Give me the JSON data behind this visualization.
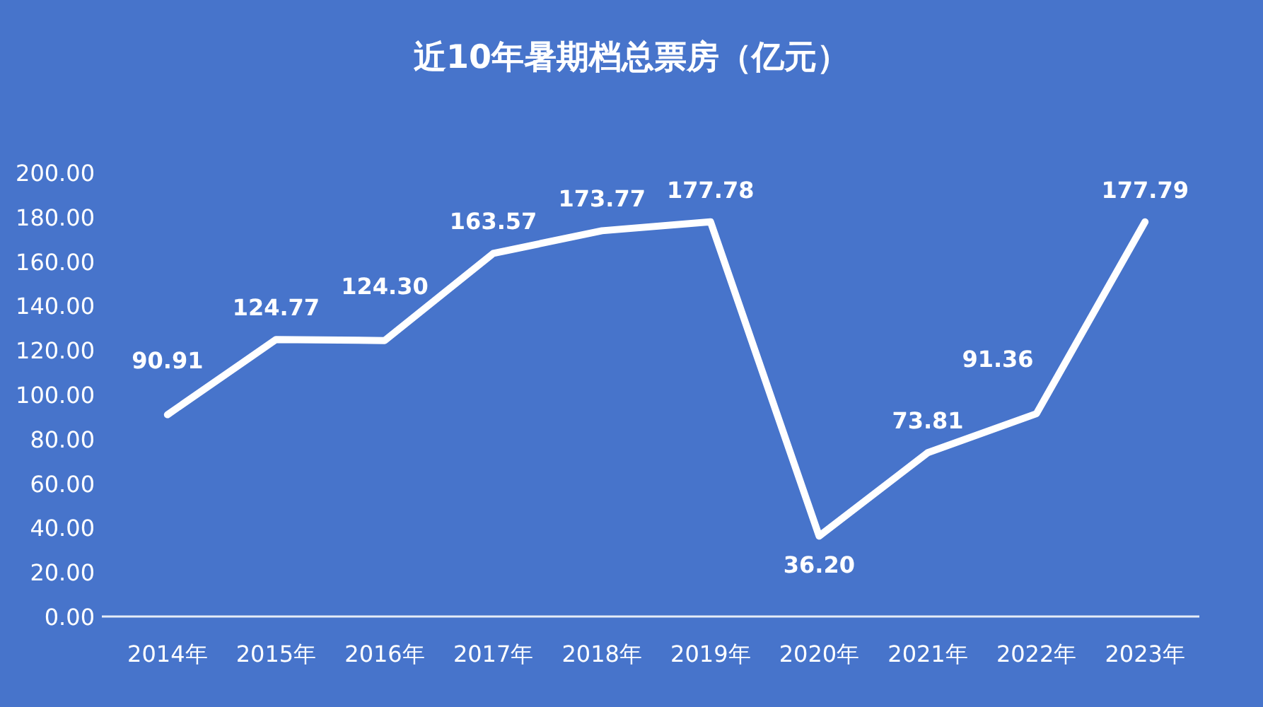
{
  "chart_data": {
    "type": "line",
    "title": "近10年暑期档总票房（亿元）",
    "categories": [
      "2014年",
      "2015年",
      "2016年",
      "2017年",
      "2018年",
      "2019年",
      "2020年",
      "2021年",
      "2022年",
      "2023年"
    ],
    "series": [
      {
        "color": "#ffffff",
        "values": [
          90.91,
          124.77,
          124.3,
          163.57,
          173.77,
          177.78,
          36.2,
          73.81,
          91.36,
          177.79
        ],
        "value_labels": [
          "90.91",
          "124.77",
          "124.30",
          "163.57",
          "173.77",
          "177.78",
          "36.20",
          "73.81",
          "91.36",
          "177.79"
        ]
      }
    ],
    "ylim": [
      0,
      200
    ],
    "yticks": [
      {
        "value": 0,
        "label": "0.00"
      },
      {
        "value": 20,
        "label": "20.00"
      },
      {
        "value": 40,
        "label": "40.00"
      },
      {
        "value": 60,
        "label": "60.00"
      },
      {
        "value": 80,
        "label": "80.00"
      },
      {
        "value": 100,
        "label": "100.00"
      },
      {
        "value": 120,
        "label": "120.00"
      },
      {
        "value": 140,
        "label": "140.00"
      },
      {
        "value": 160,
        "label": "160.00"
      },
      {
        "value": 180,
        "label": "180.00"
      },
      {
        "value": 200,
        "label": "200.00"
      }
    ],
    "grid": false,
    "marker": "none",
    "line_style": "solid"
  }
}
